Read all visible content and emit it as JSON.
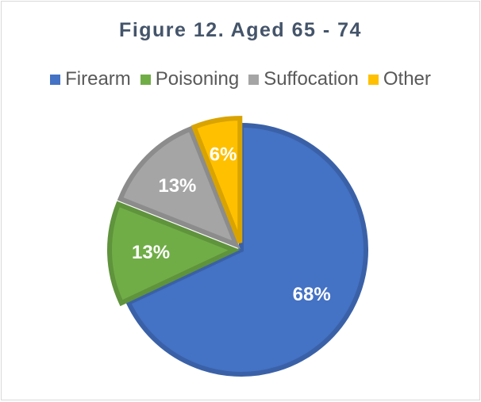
{
  "chart_data": {
    "type": "pie",
    "title": "Figure 12. Aged 65 - 74",
    "legend_position": "top",
    "categories": [
      "Firearm",
      "Poisoning",
      "Suffocation",
      "Other"
    ],
    "values": [
      68,
      13,
      13,
      6
    ],
    "data_labels": [
      "68%",
      "13%",
      "13%",
      "6%"
    ],
    "colors": [
      "#4472c4",
      "#70ad47",
      "#a5a5a5",
      "#ffc000"
    ],
    "exploded": [
      "Poisoning",
      "Suffocation",
      "Other"
    ]
  }
}
